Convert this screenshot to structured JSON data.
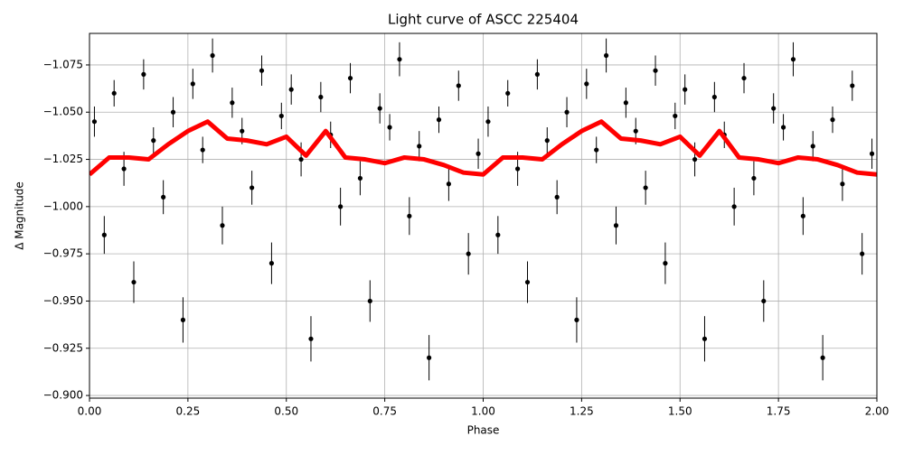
{
  "chart_data": {
    "type": "scatter",
    "title": "Light curve of ASCC 225404",
    "xlabel": "Phase",
    "ylabel": "Δ Magnitude",
    "xlim": [
      0,
      2
    ],
    "ylim": [
      -0.8986,
      -1.0917
    ],
    "grid": true,
    "xticks": [
      {
        "value": 0,
        "label": "0.00"
      },
      {
        "value": 0.25,
        "label": "0.25"
      },
      {
        "value": 0.5,
        "label": "0.50"
      },
      {
        "value": 0.75,
        "label": "0.75"
      },
      {
        "value": 1,
        "label": "1.00"
      },
      {
        "value": 1.25,
        "label": "1.25"
      },
      {
        "value": 1.5,
        "label": "1.50"
      },
      {
        "value": 1.75,
        "label": "1.75"
      },
      {
        "value": 2,
        "label": "2.00"
      }
    ],
    "yticks": [
      {
        "value": -1.075,
        "label": "−1.075"
      },
      {
        "value": -1.05,
        "label": "−1.050"
      },
      {
        "value": -1.025,
        "label": "−1.025"
      },
      {
        "value": -1.0,
        "label": "−1.000"
      },
      {
        "value": -0.975,
        "label": "−0.975"
      },
      {
        "value": -0.95,
        "label": "−0.950"
      },
      {
        "value": -0.925,
        "label": "−0.925"
      },
      {
        "value": -0.9,
        "label": "−0.900"
      }
    ],
    "series": [
      {
        "type": "scatter",
        "color": "#000000",
        "x": [
          0.0125,
          0.0375,
          0.0625,
          0.0875,
          0.1125,
          0.1375,
          0.1625,
          0.1875,
          0.2125,
          0.2375,
          0.2625,
          0.2875,
          0.3125,
          0.3375,
          0.3625,
          0.3875,
          0.4125,
          0.4375,
          0.4625,
          0.4875,
          0.5125,
          0.5375,
          0.5625,
          0.5875,
          0.6125,
          0.6375,
          0.6625,
          0.6875,
          0.7125,
          0.7375,
          0.7625,
          0.7875,
          0.8125,
          0.8375,
          0.8625,
          0.8875,
          0.9125,
          0.9375,
          0.9625,
          0.9875,
          1.0125,
          1.0375,
          1.0625,
          1.0875,
          1.1125,
          1.1375,
          1.1625,
          1.1875,
          1.2125,
          1.2375,
          1.2625,
          1.2875,
          1.3125,
          1.3375,
          1.3625,
          1.3875,
          1.4125,
          1.4375,
          1.4625,
          1.4875,
          1.5125,
          1.5375,
          1.5625,
          1.5875,
          1.6125,
          1.6375,
          1.6625,
          1.6875,
          1.7125,
          1.7375,
          1.7625,
          1.7875,
          1.8125,
          1.8375,
          1.8625,
          1.8875,
          1.9125,
          1.9375,
          1.9625,
          1.9875
        ],
        "values": [
          -1.045,
          -0.985,
          -1.06,
          -1.02,
          -0.96,
          -1.07,
          -1.035,
          -1.005,
          -1.05,
          -0.94,
          -1.065,
          -1.03,
          -1.08,
          -0.99,
          -1.055,
          -1.04,
          -1.01,
          -1.072,
          -0.97,
          -1.048,
          -1.062,
          -1.025,
          -0.93,
          -1.058,
          -1.038,
          -1.0,
          -1.068,
          -1.015,
          -0.95,
          -1.052,
          -1.042,
          -1.078,
          -0.995,
          -1.032,
          -0.92,
          -1.046,
          -1.012,
          -1.064,
          -0.975,
          -1.028,
          -1.045,
          -0.985,
          -1.06,
          -1.02,
          -0.96,
          -1.07,
          -1.035,
          -1.005,
          -1.05,
          -0.94,
          -1.065,
          -1.03,
          -1.08,
          -0.99,
          -1.055,
          -1.04,
          -1.01,
          -1.072,
          -0.97,
          -1.048,
          -1.062,
          -1.025,
          -0.93,
          -1.058,
          -1.038,
          -1.0,
          -1.068,
          -1.015,
          -0.95,
          -1.052,
          -1.042,
          -1.078,
          -0.995,
          -1.032,
          -0.92,
          -1.046,
          -1.012,
          -1.064,
          -0.975,
          -1.028
        ],
        "errors": [
          0.008,
          0.01,
          0.007,
          0.009,
          0.011,
          0.008,
          0.007,
          0.009,
          0.008,
          0.012,
          0.008,
          0.007,
          0.009,
          0.01,
          0.008,
          0.007,
          0.009,
          0.008,
          0.011,
          0.007,
          0.008,
          0.009,
          0.012,
          0.008,
          0.007,
          0.01,
          0.008,
          0.009,
          0.011,
          0.008,
          0.007,
          0.009,
          0.01,
          0.008,
          0.012,
          0.007,
          0.009,
          0.008,
          0.011,
          0.008,
          0.008,
          0.01,
          0.007,
          0.009,
          0.011,
          0.008,
          0.007,
          0.009,
          0.008,
          0.012,
          0.008,
          0.007,
          0.009,
          0.01,
          0.008,
          0.007,
          0.009,
          0.008,
          0.011,
          0.007,
          0.008,
          0.009,
          0.012,
          0.008,
          0.007,
          0.01,
          0.008,
          0.009,
          0.011,
          0.008,
          0.007,
          0.009,
          0.01,
          0.008,
          0.012,
          0.007,
          0.009,
          0.008,
          0.011,
          0.008
        ]
      },
      {
        "type": "line",
        "color": "#ff0000",
        "x": [
          0,
          0.05,
          0.1,
          0.15,
          0.2,
          0.25,
          0.3,
          0.35,
          0.4,
          0.45,
          0.5,
          0.55,
          0.6,
          0.65,
          0.7,
          0.75,
          0.8,
          0.85,
          0.9,
          0.95,
          1,
          1.05,
          1.1,
          1.15,
          1.2,
          1.25,
          1.3,
          1.35,
          1.4,
          1.45,
          1.5,
          1.55,
          1.6,
          1.65,
          1.7,
          1.75,
          1.8,
          1.85,
          1.9,
          1.95,
          2
        ],
        "values": [
          -1.017,
          -1.026,
          -1.026,
          -1.025,
          -1.033,
          -1.04,
          -1.045,
          -1.036,
          -1.035,
          -1.033,
          -1.037,
          -1.027,
          -1.04,
          -1.026,
          -1.025,
          -1.023,
          -1.026,
          -1.025,
          -1.022,
          -1.018,
          -1.017,
          -1.026,
          -1.026,
          -1.025,
          -1.033,
          -1.04,
          -1.045,
          -1.036,
          -1.035,
          -1.033,
          -1.037,
          -1.027,
          -1.04,
          -1.026,
          -1.025,
          -1.023,
          -1.026,
          -1.025,
          -1.022,
          -1.018,
          -1.017
        ]
      }
    ]
  }
}
